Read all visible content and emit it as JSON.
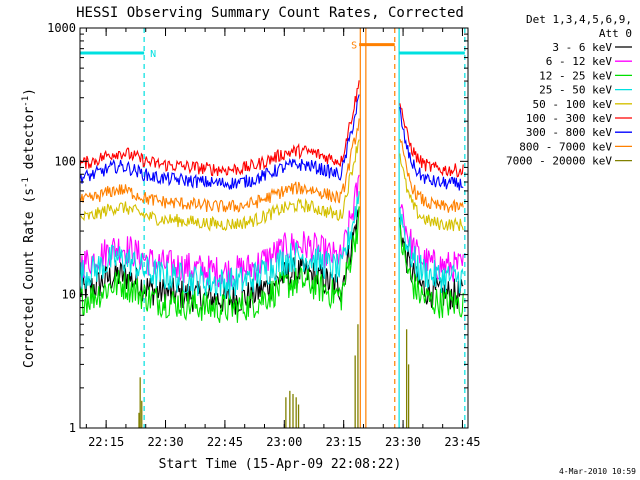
{
  "chart_data": {
    "type": "line",
    "title": "HESSI Observing Summary Count Rates, Corrected",
    "xlabel": "Start Time (15-Apr-09 22:08:22)",
    "ylabel_main": "Corrected Count Rate (s",
    "ylabel_sup1": "-1",
    "ylabel_mid": " detector",
    "ylabel_sup2": "-1",
    "ylabel_end": ")",
    "yscale": "log",
    "ylim": [
      1,
      1000
    ],
    "xlim_minutes": [
      0,
      98
    ],
    "x_tick_labels": [
      "22:15",
      "22:30",
      "22:45",
      "23:00",
      "23:15",
      "23:30",
      "23:45"
    ],
    "x_tick_minutes": [
      6.6,
      21.6,
      36.6,
      51.6,
      66.6,
      81.6,
      96.6
    ],
    "y_tick_labels": [
      "1",
      "10",
      "100",
      "1000"
    ],
    "y_tick_values": [
      1,
      10,
      100,
      1000
    ],
    "legend_header_1": "Det 1,3,4,5,6,9,",
    "legend_header_2": "Att 0",
    "legend_placement": "right",
    "series": [
      {
        "name": "3 - 6 keV",
        "color": "#000000",
        "base": 10.5
      },
      {
        "name": "6 - 12 keV",
        "color": "#ff00ff",
        "base": 17
      },
      {
        "name": "12 - 25 keV",
        "color": "#00e000",
        "base": 9
      },
      {
        "name": "25 - 50 keV",
        "color": "#00e0e0",
        "base": 14
      },
      {
        "name": "50 - 100 keV",
        "color": "#d4c000",
        "base": 37
      },
      {
        "name": "100 - 300 keV",
        "color": "#ff0000",
        "base": 95
      },
      {
        "name": "300 - 800 keV",
        "color": "#0000ff",
        "base": 75
      },
      {
        "name": "800 - 7000 keV",
        "color": "#ff8000",
        "base": 50
      },
      {
        "name": "7000 - 20000 keV",
        "color": "#808000",
        "base": 1
      }
    ],
    "annotations": [
      {
        "label": "N",
        "start_minute": 0,
        "end_minute": 16.2,
        "color": "#00e0e0",
        "y": 650
      },
      {
        "label": "S",
        "start_minute": 70.5,
        "end_minute": 79.5,
        "color": "#ff8000",
        "y": 750
      },
      {
        "label": "",
        "start_minute": 80.5,
        "end_minute": 97.2,
        "color": "#00e0e0",
        "y": 650
      }
    ],
    "saa_minutes": [
      70.8,
      72.2
    ],
    "night_minutes": [
      80.6,
      97.2
    ],
    "timestamp": "4-Mar-2010 10:59"
  }
}
